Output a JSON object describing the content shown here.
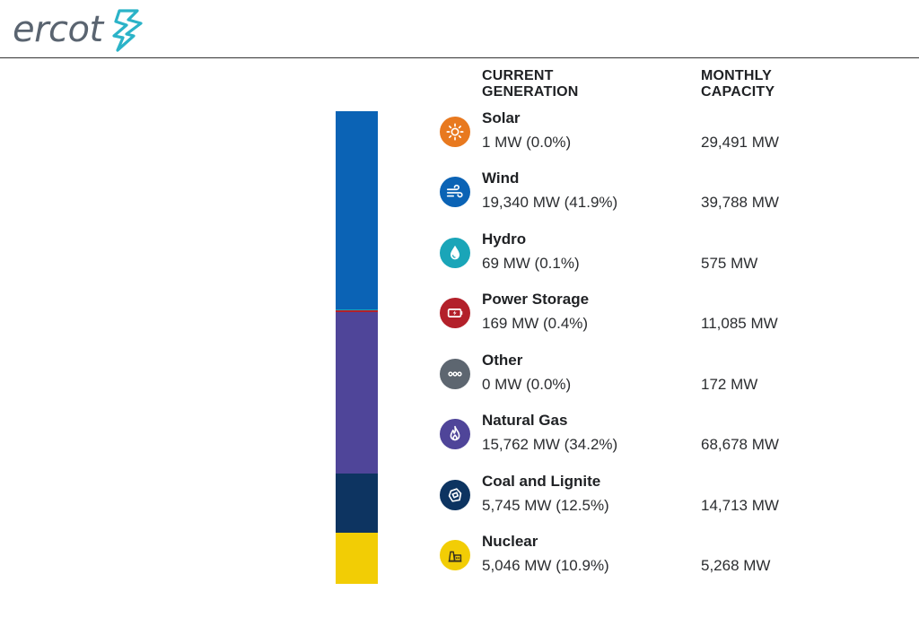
{
  "brand": {
    "logo_text": "ercot",
    "logo_color": "#5a6470",
    "mark_color": "#2bb3c8"
  },
  "columns": {
    "current_line1": "CURRENT",
    "current_line2": "GENERATION",
    "capacity_line1": "MONTHLY",
    "capacity_line2": "CAPACITY"
  },
  "sources": [
    {
      "name": "Solar",
      "generation": "1 MW (0.0%)",
      "capacity": "29,491 MW",
      "icon": "sun-icon",
      "color": "#e8791f",
      "share_pct": 0.0
    },
    {
      "name": "Wind",
      "generation": "19,340 MW (41.9%)",
      "capacity": "39,788 MW",
      "icon": "wind-icon",
      "color": "#0b63b5",
      "share_pct": 41.9
    },
    {
      "name": "Hydro",
      "generation": "69 MW (0.1%)",
      "capacity": "575 MW",
      "icon": "water-drop-icon",
      "color": "#1aa5b8",
      "share_pct": 0.1
    },
    {
      "name": "Power Storage",
      "generation": "169 MW (0.4%)",
      "capacity": "11,085 MW",
      "icon": "battery-icon",
      "color": "#b3202a",
      "share_pct": 0.4
    },
    {
      "name": "Other",
      "generation": "0 MW (0.0%)",
      "capacity": "172 MW",
      "icon": "more-dots-icon",
      "color": "#5d6670",
      "share_pct": 0.0
    },
    {
      "name": "Natural Gas",
      "generation": "15,762 MW (34.2%)",
      "capacity": "68,678 MW",
      "icon": "flame-icon",
      "color": "#4f4599",
      "share_pct": 34.2
    },
    {
      "name": "Coal and Lignite",
      "generation": "5,745 MW (12.5%)",
      "capacity": "14,713 MW",
      "icon": "coal-icon",
      "color": "#0d3461",
      "share_pct": 12.5
    },
    {
      "name": "Nuclear",
      "generation": "5,046 MW (10.9%)",
      "capacity": "5,268 MW",
      "icon": "nuclear-plant-icon",
      "color": "#f2cd05",
      "share_pct": 10.9
    }
  ]
}
